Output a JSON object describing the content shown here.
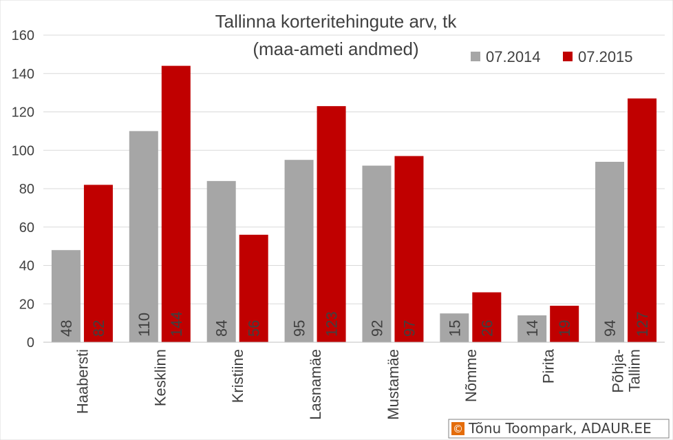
{
  "chart_data": {
    "type": "bar",
    "title": "Tallinna korteritehingute arv, tk",
    "subtitle": "(maa-ameti andmed)",
    "categories": [
      "Haabersti",
      "Kesklinn",
      "Kristiine",
      "Lasnamäe",
      "Mustamäe",
      "Nõmme",
      "Pirita",
      "Põhja-Tallinn"
    ],
    "series": [
      {
        "name": "07.2014",
        "color": "#a6a6a6",
        "values": [
          48,
          110,
          84,
          95,
          92,
          15,
          14,
          94
        ]
      },
      {
        "name": "07.2015",
        "color": "#c00000",
        "values": [
          82,
          144,
          56,
          123,
          97,
          26,
          19,
          127
        ]
      }
    ],
    "ylim": [
      0,
      160
    ],
    "yticks": [
      0,
      20,
      40,
      60,
      80,
      100,
      120,
      140,
      160
    ],
    "grid": true,
    "legend": "top-right",
    "xlabel": "",
    "ylabel": ""
  },
  "credit": {
    "symbol": "©",
    "text": "Tõnu Toompark, ADAUR.EE",
    "accent": "#e46c0a"
  }
}
